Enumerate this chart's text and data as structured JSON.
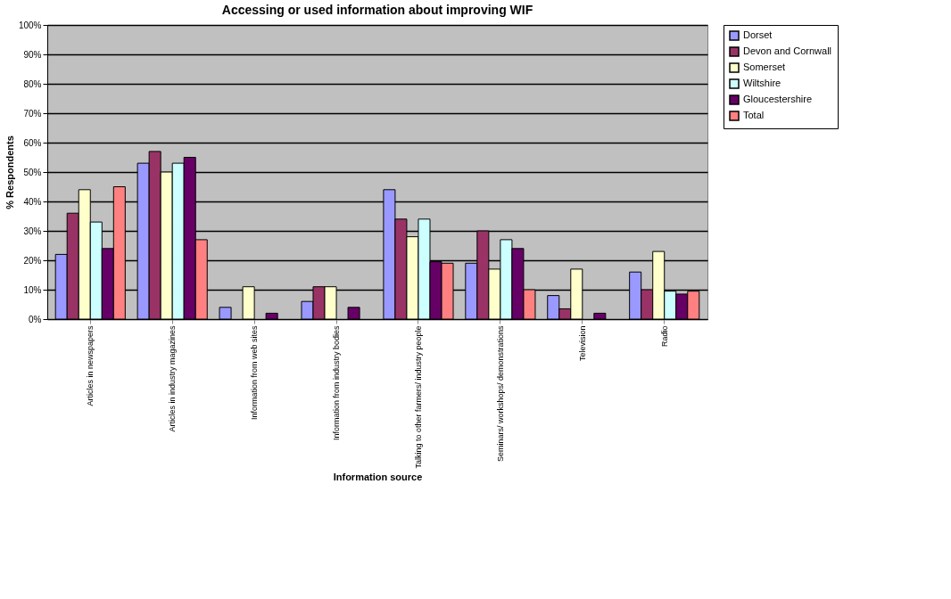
{
  "chart_data": {
    "type": "bar",
    "title": "Accessing or used information about improving WIF",
    "xlabel": "Information source",
    "ylabel": "% Respondents",
    "categories": [
      "Articles in newspapers",
      "Articles in industry magazines",
      "Information from web sites",
      "Information from industry bodies",
      "Talking to other farmers/ industry people",
      "Seminars/ workshops/ demonstrations",
      "Television",
      "Radio"
    ],
    "series": [
      {
        "name": "Dorset",
        "color": "#9999ff",
        "values": [
          22,
          53,
          4,
          6,
          44,
          19,
          8,
          16
        ]
      },
      {
        "name": "Devon and Cornwall",
        "color": "#993366",
        "values": [
          36,
          57,
          null,
          11,
          34,
          30,
          3.5,
          10
        ]
      },
      {
        "name": "Somerset",
        "color": "#ffffcc",
        "values": [
          44,
          50,
          11,
          11,
          28,
          17,
          17,
          23
        ]
      },
      {
        "name": "Wiltshire",
        "color": "#ccffff",
        "values": [
          33,
          53,
          null,
          null,
          34,
          27,
          null,
          9.5
        ]
      },
      {
        "name": "Gloucestershire",
        "color": "#660066",
        "values": [
          24,
          55,
          2,
          4,
          19.5,
          24,
          2,
          8.5
        ]
      },
      {
        "name": "Total",
        "color": "#ff8080",
        "values": [
          45,
          27,
          null,
          null,
          19,
          10,
          null,
          9.5
        ]
      }
    ],
    "ylim": [
      0,
      100
    ],
    "yticks": [
      {
        "value": 0,
        "label": "0%"
      },
      {
        "value": 10,
        "label": "10%"
      },
      {
        "value": 20,
        "label": "20%"
      },
      {
        "value": 30,
        "label": "30%"
      },
      {
        "value": 40,
        "label": "40%"
      },
      {
        "value": 50,
        "label": "50%"
      },
      {
        "value": 60,
        "label": "60%"
      },
      {
        "value": 70,
        "label": "70%"
      },
      {
        "value": 80,
        "label": "80%"
      },
      {
        "value": 90,
        "label": "90%"
      },
      {
        "value": 100,
        "label": "100%"
      }
    ],
    "grid": "y",
    "legend": "top right"
  }
}
